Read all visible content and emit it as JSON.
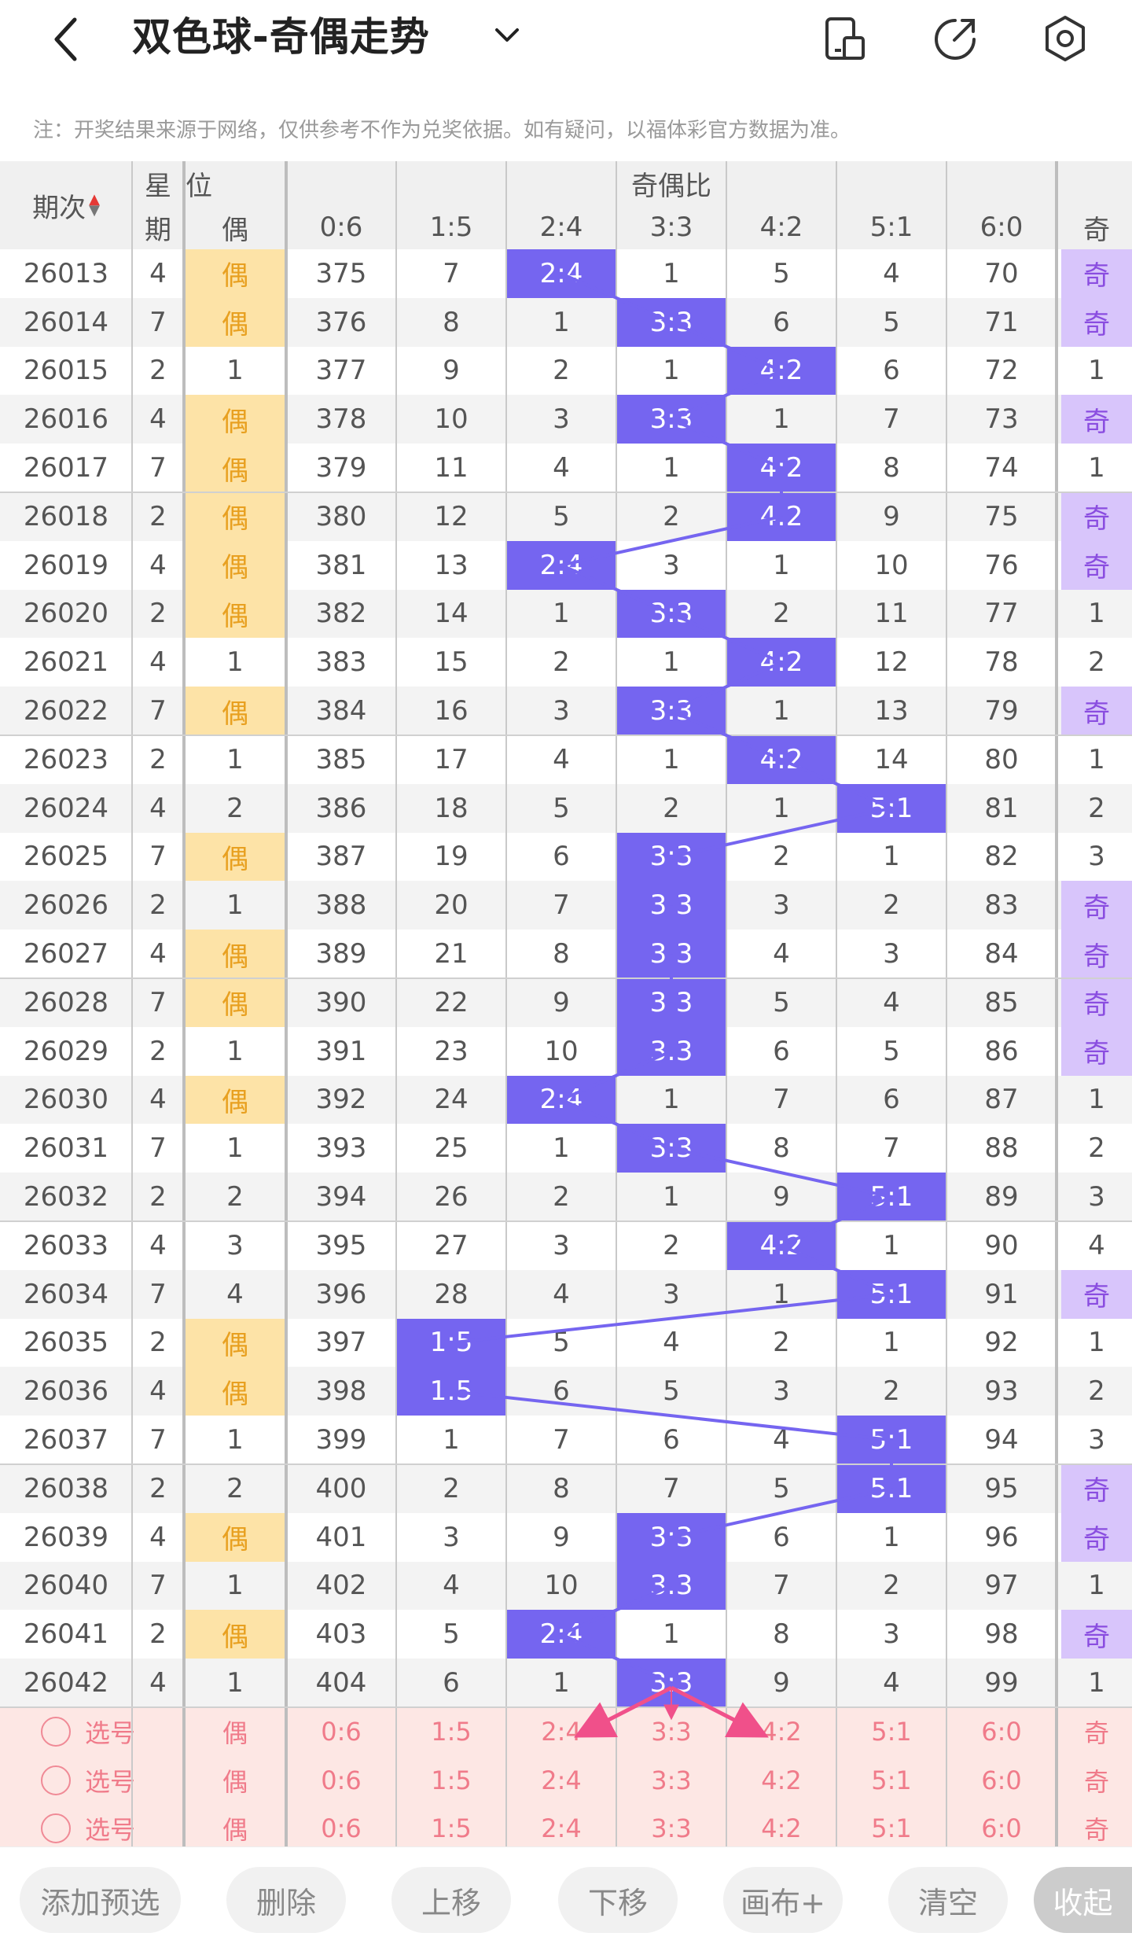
{
  "header": {
    "title": "双色球-奇偶走势",
    "note": "注：开奖结果来源于网络，仅供参考不作为兑奖依据。如有疑问，以福体彩官方数据为准。"
  },
  "table": {
    "col_period": "期次",
    "col_week_top": "星",
    "col_week_bottom": "期",
    "col_pos_top": "位",
    "col_pos_bottom": "偶",
    "col_group": "奇偶比",
    "ratios": [
      "0:6",
      "1:5",
      "2:4",
      "3:3",
      "4:2",
      "5:1",
      "6:0"
    ],
    "col_last": "奇",
    "rows": [
      {
        "p": "26013",
        "w": "4",
        "pos": "偶",
        "v": [
          "375",
          "7",
          "2:4",
          "1",
          "5",
          "4",
          "70"
        ],
        "hi": 2,
        "last": "奇"
      },
      {
        "p": "26014",
        "w": "7",
        "pos": "偶",
        "v": [
          "376",
          "8",
          "1",
          "3:3",
          "6",
          "5",
          "71"
        ],
        "hi": 3,
        "last": "奇"
      },
      {
        "p": "26015",
        "w": "2",
        "pos": "1",
        "v": [
          "377",
          "9",
          "2",
          "1",
          "4:2",
          "6",
          "72"
        ],
        "hi": 4,
        "last": "1"
      },
      {
        "p": "26016",
        "w": "4",
        "pos": "偶",
        "v": [
          "378",
          "10",
          "3",
          "3:3",
          "1",
          "7",
          "73"
        ],
        "hi": 3,
        "last": "奇"
      },
      {
        "p": "26017",
        "w": "7",
        "pos": "偶",
        "v": [
          "379",
          "11",
          "4",
          "1",
          "4:2",
          "8",
          "74"
        ],
        "hi": 4,
        "last": "1"
      },
      {
        "p": "26018",
        "w": "2",
        "pos": "偶",
        "v": [
          "380",
          "12",
          "5",
          "2",
          "4:2",
          "9",
          "75"
        ],
        "hi": 4,
        "last": "奇"
      },
      {
        "p": "26019",
        "w": "4",
        "pos": "偶",
        "v": [
          "381",
          "13",
          "2:4",
          "3",
          "1",
          "10",
          "76"
        ],
        "hi": 2,
        "last": "奇"
      },
      {
        "p": "26020",
        "w": "2",
        "pos": "偶",
        "v": [
          "382",
          "14",
          "1",
          "3:3",
          "2",
          "11",
          "77"
        ],
        "hi": 3,
        "last": "1"
      },
      {
        "p": "26021",
        "w": "4",
        "pos": "1",
        "v": [
          "383",
          "15",
          "2",
          "1",
          "4:2",
          "12",
          "78"
        ],
        "hi": 4,
        "last": "2"
      },
      {
        "p": "26022",
        "w": "7",
        "pos": "偶",
        "v": [
          "384",
          "16",
          "3",
          "3:3",
          "1",
          "13",
          "79"
        ],
        "hi": 3,
        "last": "奇"
      },
      {
        "p": "26023",
        "w": "2",
        "pos": "1",
        "v": [
          "385",
          "17",
          "4",
          "1",
          "4:2",
          "14",
          "80"
        ],
        "hi": 4,
        "last": "1"
      },
      {
        "p": "26024",
        "w": "4",
        "pos": "2",
        "v": [
          "386",
          "18",
          "5",
          "2",
          "1",
          "5:1",
          "81"
        ],
        "hi": 5,
        "last": "2"
      },
      {
        "p": "26025",
        "w": "7",
        "pos": "偶",
        "v": [
          "387",
          "19",
          "6",
          "3:3",
          "2",
          "1",
          "82"
        ],
        "hi": 3,
        "last": "3"
      },
      {
        "p": "26026",
        "w": "2",
        "pos": "1",
        "v": [
          "388",
          "20",
          "7",
          "3:3",
          "3",
          "2",
          "83"
        ],
        "hi": 3,
        "last": "奇"
      },
      {
        "p": "26027",
        "w": "4",
        "pos": "偶",
        "v": [
          "389",
          "21",
          "8",
          "3:3",
          "4",
          "3",
          "84"
        ],
        "hi": 3,
        "last": "奇"
      },
      {
        "p": "26028",
        "w": "7",
        "pos": "偶",
        "v": [
          "390",
          "22",
          "9",
          "3:3",
          "5",
          "4",
          "85"
        ],
        "hi": 3,
        "last": "奇"
      },
      {
        "p": "26029",
        "w": "2",
        "pos": "1",
        "v": [
          "391",
          "23",
          "10",
          "3:3",
          "6",
          "5",
          "86"
        ],
        "hi": 3,
        "last": "奇"
      },
      {
        "p": "26030",
        "w": "4",
        "pos": "偶",
        "v": [
          "392",
          "24",
          "2:4",
          "1",
          "7",
          "6",
          "87"
        ],
        "hi": 2,
        "last": "1"
      },
      {
        "p": "26031",
        "w": "7",
        "pos": "1",
        "v": [
          "393",
          "25",
          "1",
          "3:3",
          "8",
          "7",
          "88"
        ],
        "hi": 3,
        "last": "2"
      },
      {
        "p": "26032",
        "w": "2",
        "pos": "2",
        "v": [
          "394",
          "26",
          "2",
          "1",
          "9",
          "5:1",
          "89"
        ],
        "hi": 5,
        "last": "3"
      },
      {
        "p": "26033",
        "w": "4",
        "pos": "3",
        "v": [
          "395",
          "27",
          "3",
          "2",
          "4:2",
          "1",
          "90"
        ],
        "hi": 4,
        "last": "4"
      },
      {
        "p": "26034",
        "w": "7",
        "pos": "4",
        "v": [
          "396",
          "28",
          "4",
          "3",
          "1",
          "5:1",
          "91"
        ],
        "hi": 5,
        "last": "奇"
      },
      {
        "p": "26035",
        "w": "2",
        "pos": "偶",
        "v": [
          "397",
          "1:5",
          "5",
          "4",
          "2",
          "1",
          "92"
        ],
        "hi": 1,
        "last": "1"
      },
      {
        "p": "26036",
        "w": "4",
        "pos": "偶",
        "v": [
          "398",
          "1:5",
          "6",
          "5",
          "3",
          "2",
          "93"
        ],
        "hi": 1,
        "last": "2"
      },
      {
        "p": "26037",
        "w": "7",
        "pos": "1",
        "v": [
          "399",
          "1",
          "7",
          "6",
          "4",
          "5:1",
          "94"
        ],
        "hi": 5,
        "last": "3"
      },
      {
        "p": "26038",
        "w": "2",
        "pos": "2",
        "v": [
          "400",
          "2",
          "8",
          "7",
          "5",
          "5:1",
          "95"
        ],
        "hi": 5,
        "last": "奇"
      },
      {
        "p": "26039",
        "w": "4",
        "pos": "偶",
        "v": [
          "401",
          "3",
          "9",
          "3:3",
          "6",
          "1",
          "96"
        ],
        "hi": 3,
        "last": "奇"
      },
      {
        "p": "26040",
        "w": "7",
        "pos": "1",
        "v": [
          "402",
          "4",
          "10",
          "3:3",
          "7",
          "2",
          "97"
        ],
        "hi": 3,
        "last": "1"
      },
      {
        "p": "26041",
        "w": "2",
        "pos": "偶",
        "v": [
          "403",
          "5",
          "2:4",
          "1",
          "8",
          "3",
          "98"
        ],
        "hi": 2,
        "last": "奇"
      },
      {
        "p": "26042",
        "w": "4",
        "pos": "1",
        "v": [
          "404",
          "6",
          "1",
          "3:3",
          "9",
          "4",
          "99"
        ],
        "hi": 3,
        "last": "1"
      }
    ],
    "preselect": {
      "label": "选号",
      "pos": "偶",
      "ratios": [
        "0:6",
        "1:5",
        "2:4",
        "3:3",
        "4:2",
        "5:1",
        "6:0"
      ],
      "last": "奇"
    }
  },
  "bottom": {
    "add": "添加预选",
    "delete": "删除",
    "up": "上移",
    "down": "下移",
    "canvas": "画布+",
    "clear": "清空",
    "collapse": "收起"
  },
  "colors": {
    "highlight": "#7565f0",
    "even_bg": "#fde3a7",
    "odd_bg": "#d8c5fb",
    "preselect_bg": "#fde7e4",
    "preselect_text": "#f07b8a",
    "arrow": "#f0508a"
  }
}
